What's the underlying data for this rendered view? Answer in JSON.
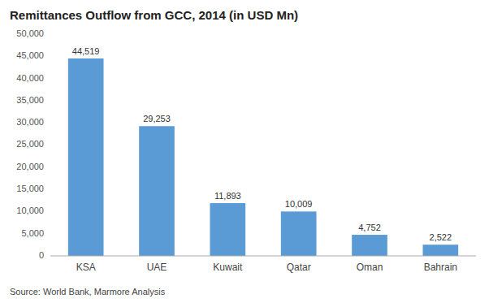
{
  "chart_data": {
    "type": "bar",
    "title": "Remittances Outflow from GCC, 2014 (in USD Mn)",
    "categories": [
      "KSA",
      "UAE",
      "Kuwait",
      "Qatar",
      "Oman",
      "Bahrain"
    ],
    "values": [
      44519,
      29253,
      11893,
      10009,
      4752,
      2522
    ],
    "value_labels": [
      "44,519",
      "29,253",
      "11,893",
      "10,009",
      "4,752",
      "2,522"
    ],
    "data_labels": true,
    "color": "#5B9BD5",
    "ylim": [
      0,
      50000
    ],
    "yticks": [
      0,
      {
        "value": 5000,
        "label": "5,000"
      },
      {
        "value": 10000,
        "label": "10,000"
      },
      {
        "value": 15000,
        "label": "15,000"
      },
      {
        "value": 20000,
        "label": "20,000"
      },
      {
        "value": 25000,
        "label": "25,000"
      },
      {
        "value": 30000,
        "label": "30,000"
      },
      {
        "value": 35000,
        "label": "35,000"
      },
      {
        "value": 40000,
        "label": "40,000"
      },
      {
        "value": 45000,
        "label": "45,000"
      },
      {
        "value": 50000,
        "label": "50,000"
      }
    ],
    "grid": false,
    "annotations": [
      "Source: World Bank, Marmore Analysis"
    ]
  }
}
